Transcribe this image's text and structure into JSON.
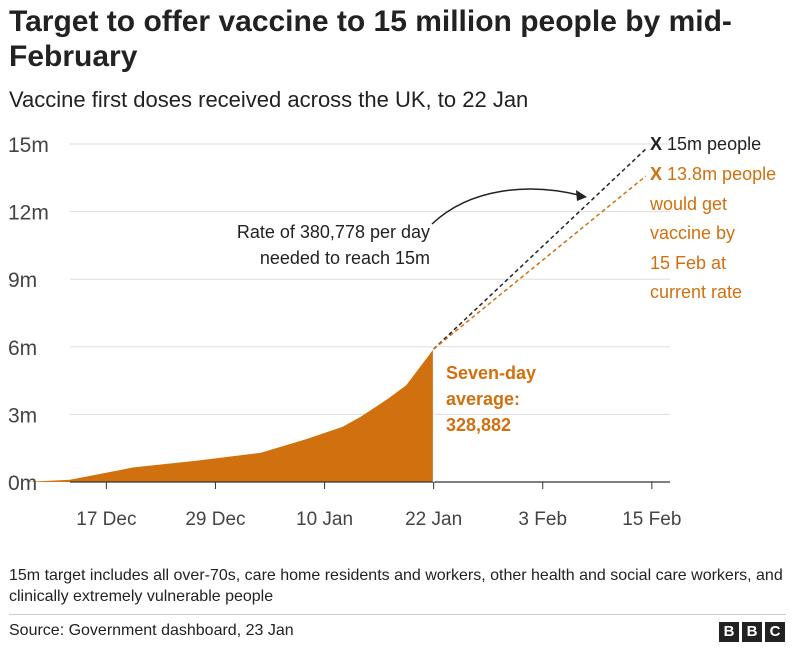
{
  "title": "Target to offer vaccine to 15 million people by mid-February",
  "subtitle": "Vaccine first doses received across the UK, to 22 Jan",
  "colors": {
    "actual": "#d1700e",
    "target_line": "#222222",
    "grid": "#dddddd",
    "text": "#222222"
  },
  "chart_data": {
    "type": "area",
    "title": "Target to offer vaccine to 15 million people by mid-February",
    "subtitle": "Vaccine first doses received across the UK, to 22 Jan",
    "y_ticks": [
      "0m",
      "3m",
      "6m",
      "9m",
      "12m",
      "15m"
    ],
    "y_tick_values": [
      0,
      3,
      6,
      9,
      12,
      15
    ],
    "ylim": [
      0,
      15
    ],
    "x_ticks": [
      "17 Dec",
      "29 Dec",
      "10 Jan",
      "22 Jan",
      "3 Feb",
      "15 Feb"
    ],
    "x_tick_values": [
      "2020-12-17",
      "2020-12-29",
      "2021-01-10",
      "2021-01-22",
      "2021-02-03",
      "2021-02-15"
    ],
    "xlim": [
      "2020-12-13",
      "2021-02-17"
    ],
    "grid": true,
    "series": [
      {
        "name": "",
        "style": "filled area",
        "x": [
          "2020-12-08",
          "2020-12-13",
          "2020-12-20",
          "2020-12-27",
          "2021-01-03",
          "2021-01-08",
          "2021-01-12",
          "2021-01-14",
          "2021-01-17",
          "2021-01-19",
          "2021-01-22"
        ],
        "y": [
          0.0,
          0.1,
          0.65,
          0.95,
          1.3,
          1.9,
          2.45,
          2.9,
          3.7,
          4.3,
          5.9
        ]
      },
      {
        "name": "",
        "style": "dashed",
        "x": [
          "2021-01-22",
          "2021-02-15"
        ],
        "y": [
          5.9,
          15.0
        ]
      },
      {
        "name": "",
        "style": "dashed",
        "x": [
          "2021-01-22",
          "2021-02-15"
        ],
        "y": [
          5.9,
          13.8
        ]
      }
    ],
    "annotations": {
      "rate_lines": [
        "Rate of 380,778 per day",
        "needed to reach 15m"
      ],
      "average_lines": [
        "Seven-day",
        "average:",
        "328,882"
      ],
      "target_marker": "X",
      "target_label": "15m people",
      "projection_marker": "X",
      "projection_lines": [
        "13.8m people",
        "would get",
        "vaccine by",
        "15 Feb at",
        "current rate"
      ]
    }
  },
  "footnote": "15m target includes all over-70s, care home residents and workers, other health and social care workers, and clinically extremely vulnerable people",
  "source": "Source: Government dashboard, 23 Jan",
  "logo": [
    "B",
    "B",
    "C"
  ]
}
